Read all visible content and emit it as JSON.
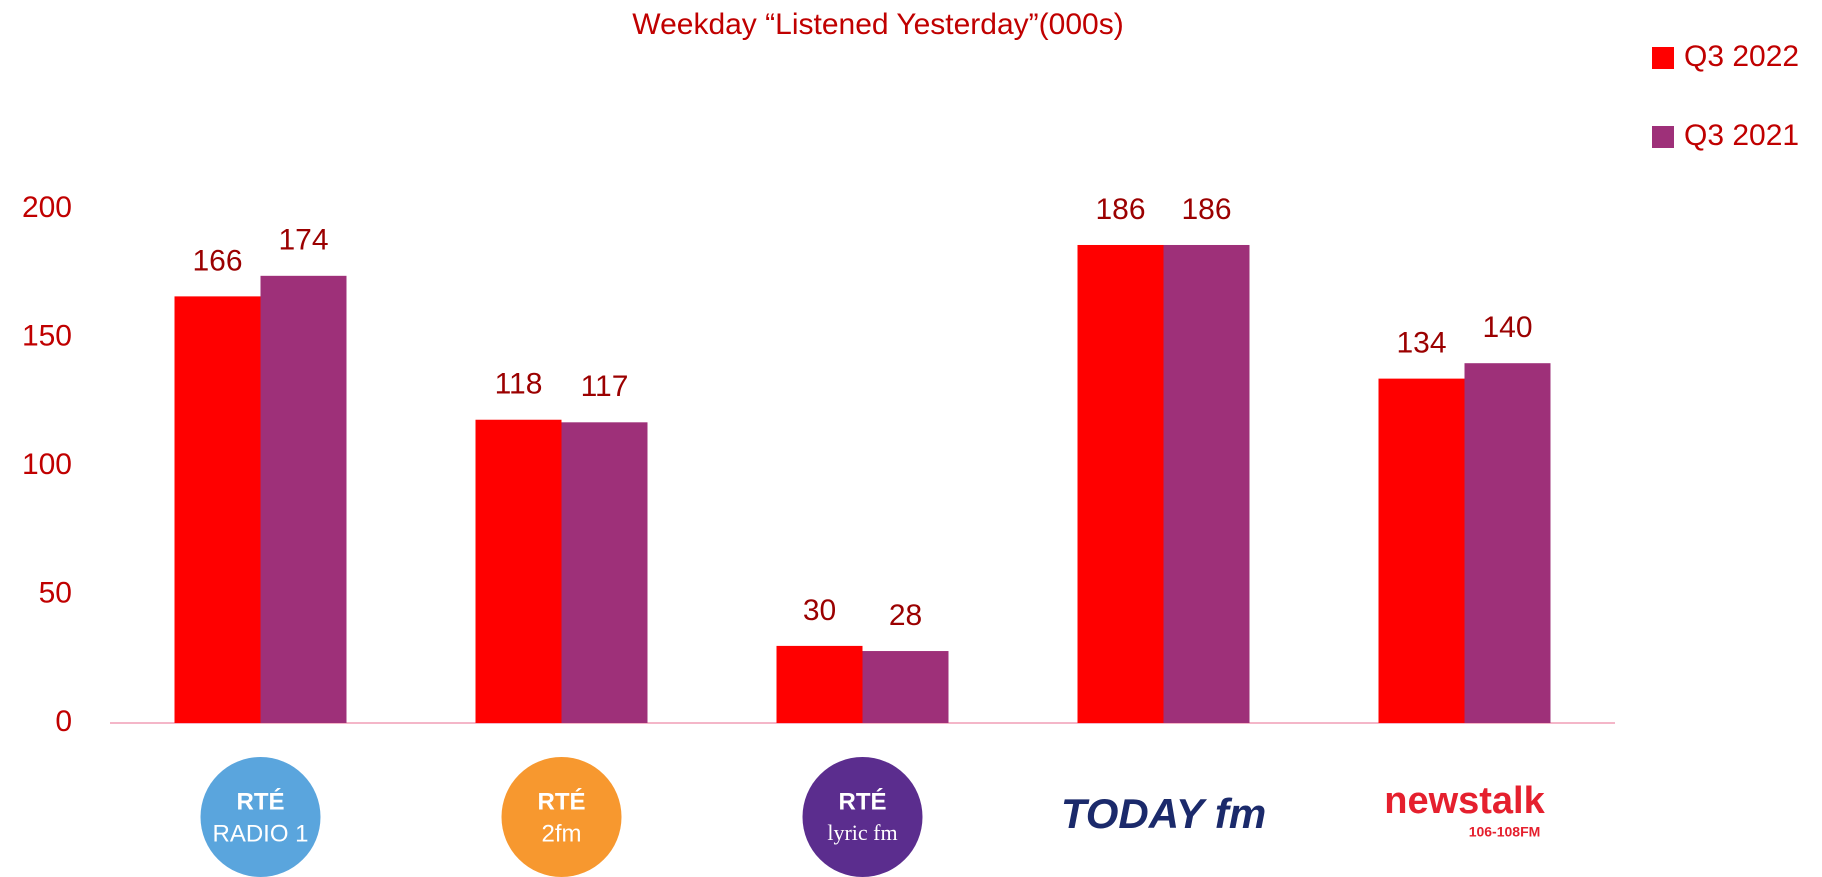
{
  "chart_data": {
    "type": "bar",
    "title": "Weekday “Listened Yesterday”(000s)",
    "categories": [
      [
        "RTÉ",
        "RADIO 1"
      ],
      [
        "RTÉ",
        "2fm"
      ],
      [
        "RTÉ",
        "lyric fm"
      ],
      [
        "TODAY fm"
      ],
      [
        "newstalk",
        "106-108FM"
      ]
    ],
    "series": [
      {
        "name": "Q3 2022",
        "color": "#ff0000",
        "values": [
          166,
          118,
          30,
          186,
          134
        ]
      },
      {
        "name": "Q3 2021",
        "color": "#9e3079",
        "values": [
          174,
          117,
          28,
          186,
          140
        ]
      }
    ],
    "ylim": [
      0,
      200
    ],
    "yticks": [
      0,
      50,
      100,
      150,
      200
    ],
    "grid": false,
    "legend": "top-right"
  }
}
